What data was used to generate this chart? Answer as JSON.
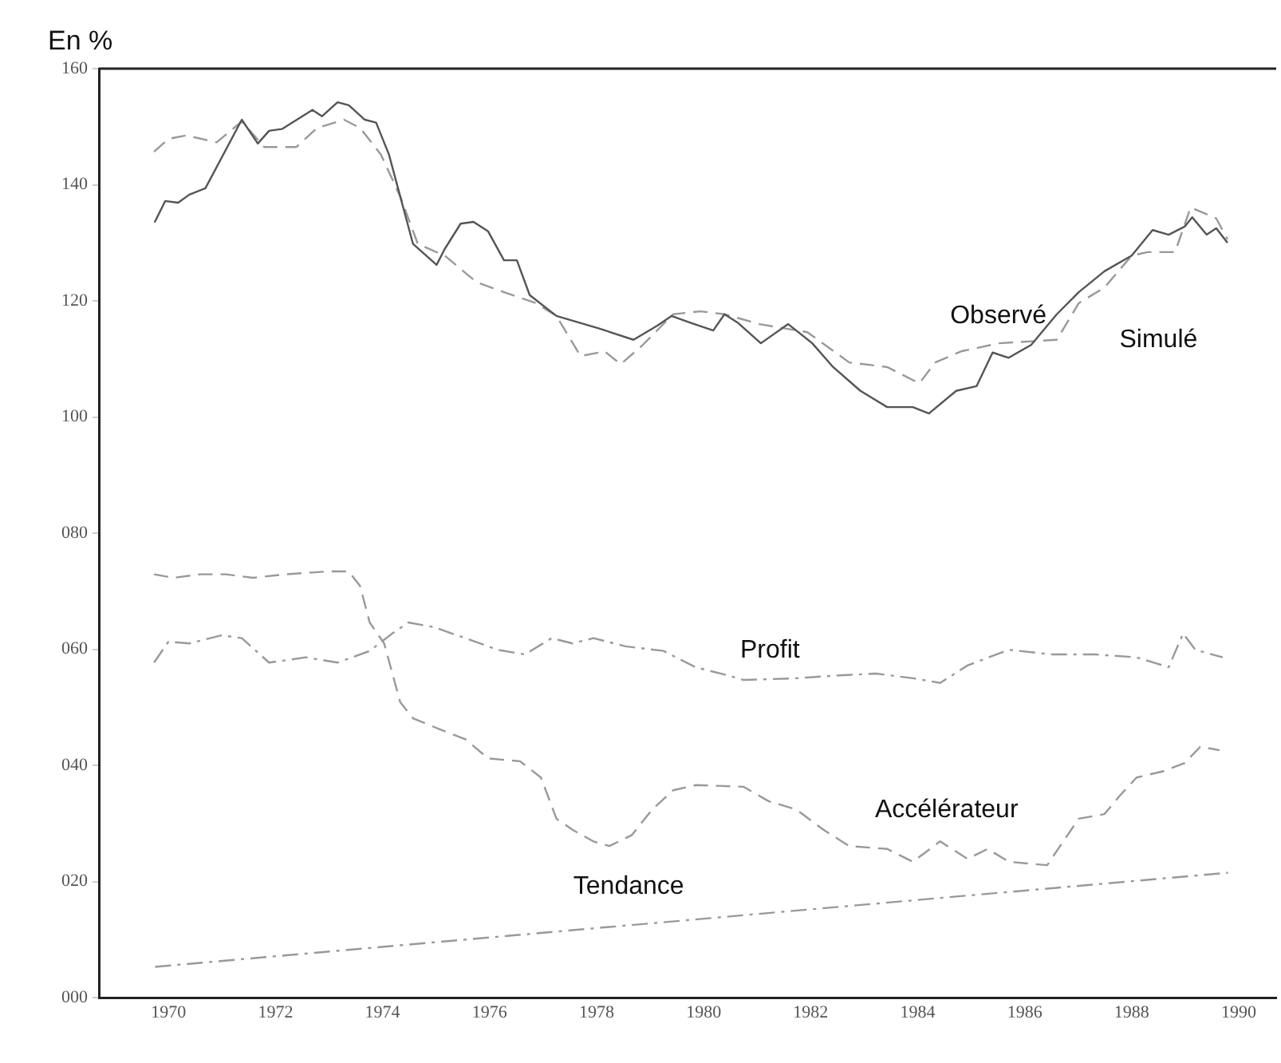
{
  "chart_data": {
    "type": "line",
    "ylabel": "En %",
    "xlim": [
      1968.7,
      1990.7
    ],
    "xticks": [
      1970,
      1972,
      1974,
      1976,
      1978,
      1980,
      1982,
      1984,
      1986,
      1988,
      1990
    ],
    "ylim": [
      0,
      160
    ],
    "yticks": [
      {
        "value": 0,
        "label": "000"
      },
      {
        "value": 20,
        "label": "020"
      },
      {
        "value": 40,
        "label": "040"
      },
      {
        "value": 60,
        "label": "060"
      },
      {
        "value": 80,
        "label": "080"
      },
      100,
      120,
      140,
      160
    ],
    "grid": false,
    "legend": false,
    "marker": "none",
    "series": [
      {
        "name": "Observé",
        "color": "#555555",
        "line_style": "solid",
        "x": [
          1969.74,
          1969.94,
          1970.18,
          1970.39,
          1970.69,
          1971.37,
          1971.67,
          1971.88,
          1972.12,
          1972.69,
          1972.87,
          1973.16,
          1973.37,
          1973.67,
          1973.88,
          1974.12,
          1974.57,
          1975.01,
          1975.16,
          1975.46,
          1975.7,
          1975.97,
          1976.27,
          1976.51,
          1976.75,
          1977.25,
          1978.06,
          1978.69,
          1979.13,
          1979.4,
          1979.73,
          1980.18,
          1980.39,
          1980.63,
          1981.07,
          1981.58,
          1982.03,
          1982.42,
          1982.93,
          1983.43,
          1983.91,
          1984.21,
          1984.72,
          1985.1,
          1985.4,
          1985.7,
          1986.12,
          1986.6,
          1987.01,
          1987.49,
          1988.0,
          1988.39,
          1988.69,
          1988.99,
          1989.13,
          1989.4,
          1989.58,
          1989.79
        ],
        "values": [
          133.5,
          137.2,
          136.9,
          138.3,
          139.4,
          151.2,
          147.1,
          149.3,
          149.6,
          152.9,
          151.8,
          154.2,
          153.7,
          151.2,
          150.7,
          145.2,
          129.8,
          126.2,
          128.9,
          133.3,
          133.6,
          132.0,
          127.0,
          127.0,
          121.0,
          117.4,
          115.2,
          113.3,
          115.7,
          117.4,
          116.3,
          114.9,
          117.7,
          116.3,
          112.7,
          116.0,
          112.7,
          108.6,
          104.5,
          101.7,
          101.7,
          100.6,
          104.5,
          105.3,
          111.1,
          110.2,
          112.4,
          117.7,
          121.5,
          125.1,
          127.8,
          132.2,
          131.4,
          132.8,
          134.4,
          131.4,
          132.5,
          130.0
        ]
      },
      {
        "name": "Simulé",
        "color": "#999999",
        "line_style": "dashed",
        "x": [
          1969.73,
          1970.0,
          1970.33,
          1970.9,
          1971.37,
          1971.79,
          1972.39,
          1972.78,
          1973.28,
          1973.58,
          1973.97,
          1974.33,
          1974.66,
          1975.16,
          1975.76,
          1976.27,
          1976.87,
          1977.25,
          1977.7,
          1978.15,
          1978.45,
          1978.84,
          1979.43,
          1979.94,
          1980.39,
          1981.04,
          1981.94,
          1982.72,
          1983.43,
          1984.03,
          1984.33,
          1984.81,
          1985.52,
          1986.6,
          1987.01,
          1987.49,
          1988.0,
          1988.3,
          1988.81,
          1989.1,
          1989.58,
          1989.79
        ],
        "values": [
          145.7,
          147.9,
          148.5,
          147.3,
          150.9,
          146.5,
          146.5,
          149.8,
          151.2,
          149.8,
          145.2,
          138.0,
          129.8,
          127.8,
          123.2,
          121.5,
          119.6,
          117.4,
          110.5,
          111.3,
          109.1,
          112.2,
          117.7,
          118.2,
          117.7,
          116.0,
          114.6,
          109.4,
          108.6,
          105.8,
          109.4,
          111.3,
          112.7,
          113.3,
          119.6,
          122.3,
          127.8,
          128.4,
          128.4,
          136.1,
          134.2,
          130.6
        ]
      },
      {
        "name": "Profit",
        "color": "#999999",
        "line_style": "dashdot",
        "x": [
          1969.73,
          1970.0,
          1970.39,
          1970.99,
          1971.37,
          1971.88,
          1972.57,
          1973.16,
          1973.76,
          1974.18,
          1974.48,
          1974.96,
          1975.55,
          1976.15,
          1976.66,
          1977.16,
          1977.55,
          1977.94,
          1978.54,
          1979.25,
          1979.85,
          1980.45,
          1980.75,
          1981.73,
          1982.54,
          1983.22,
          1983.91,
          1984.42,
          1984.93,
          1985.7,
          1986.51,
          1987.31,
          1988.09,
          1988.69,
          1988.96,
          1989.19,
          1989.7
        ],
        "values": [
          57.7,
          61.3,
          61.0,
          62.4,
          61.9,
          57.7,
          58.6,
          57.7,
          59.7,
          62.7,
          64.6,
          63.8,
          61.9,
          59.9,
          59.1,
          61.9,
          61.0,
          61.9,
          60.5,
          59.7,
          56.9,
          55.5,
          54.7,
          55.0,
          55.5,
          55.8,
          55.0,
          54.2,
          57.2,
          59.9,
          59.1,
          59.1,
          58.6,
          56.9,
          62.7,
          59.9,
          58.6
        ]
      },
      {
        "name": "Accélérateur",
        "color": "#999999",
        "line_style": "dashed",
        "x": [
          1969.73,
          1970.09,
          1970.6,
          1971.07,
          1971.58,
          1972.18,
          1972.99,
          1973.37,
          1973.58,
          1973.76,
          1974.03,
          1974.33,
          1974.57,
          1975.07,
          1975.55,
          1975.97,
          1976.57,
          1976.96,
          1977.25,
          1977.55,
          1977.94,
          1978.24,
          1978.66,
          1979.04,
          1979.43,
          1979.85,
          1980.75,
          1981.22,
          1981.73,
          1982.24,
          1982.72,
          1983.43,
          1983.91,
          1984.42,
          1984.93,
          1985.31,
          1985.7,
          1986.42,
          1986.72,
          1987.01,
          1987.49,
          1987.79,
          1988.09,
          1988.6,
          1988.99,
          1989.28,
          1989.64
        ],
        "values": [
          72.9,
          72.3,
          72.9,
          72.9,
          72.3,
          72.9,
          73.4,
          73.4,
          70.9,
          64.6,
          61.0,
          50.9,
          48.1,
          46.2,
          44.5,
          41.2,
          40.7,
          37.9,
          30.8,
          28.9,
          26.9,
          26.1,
          28.0,
          32.4,
          35.7,
          36.6,
          36.3,
          33.8,
          32.4,
          28.9,
          26.1,
          25.6,
          23.4,
          26.9,
          23.9,
          25.6,
          23.4,
          22.8,
          26.9,
          30.8,
          31.6,
          34.9,
          37.9,
          39.0,
          40.4,
          43.2,
          42.6
        ]
      },
      {
        "name": "Tendance",
        "color": "#999999",
        "line_style": "dashdot",
        "x": [
          1969.75,
          1989.8
        ],
        "values": [
          5.3,
          21.5
        ]
      }
    ]
  }
}
